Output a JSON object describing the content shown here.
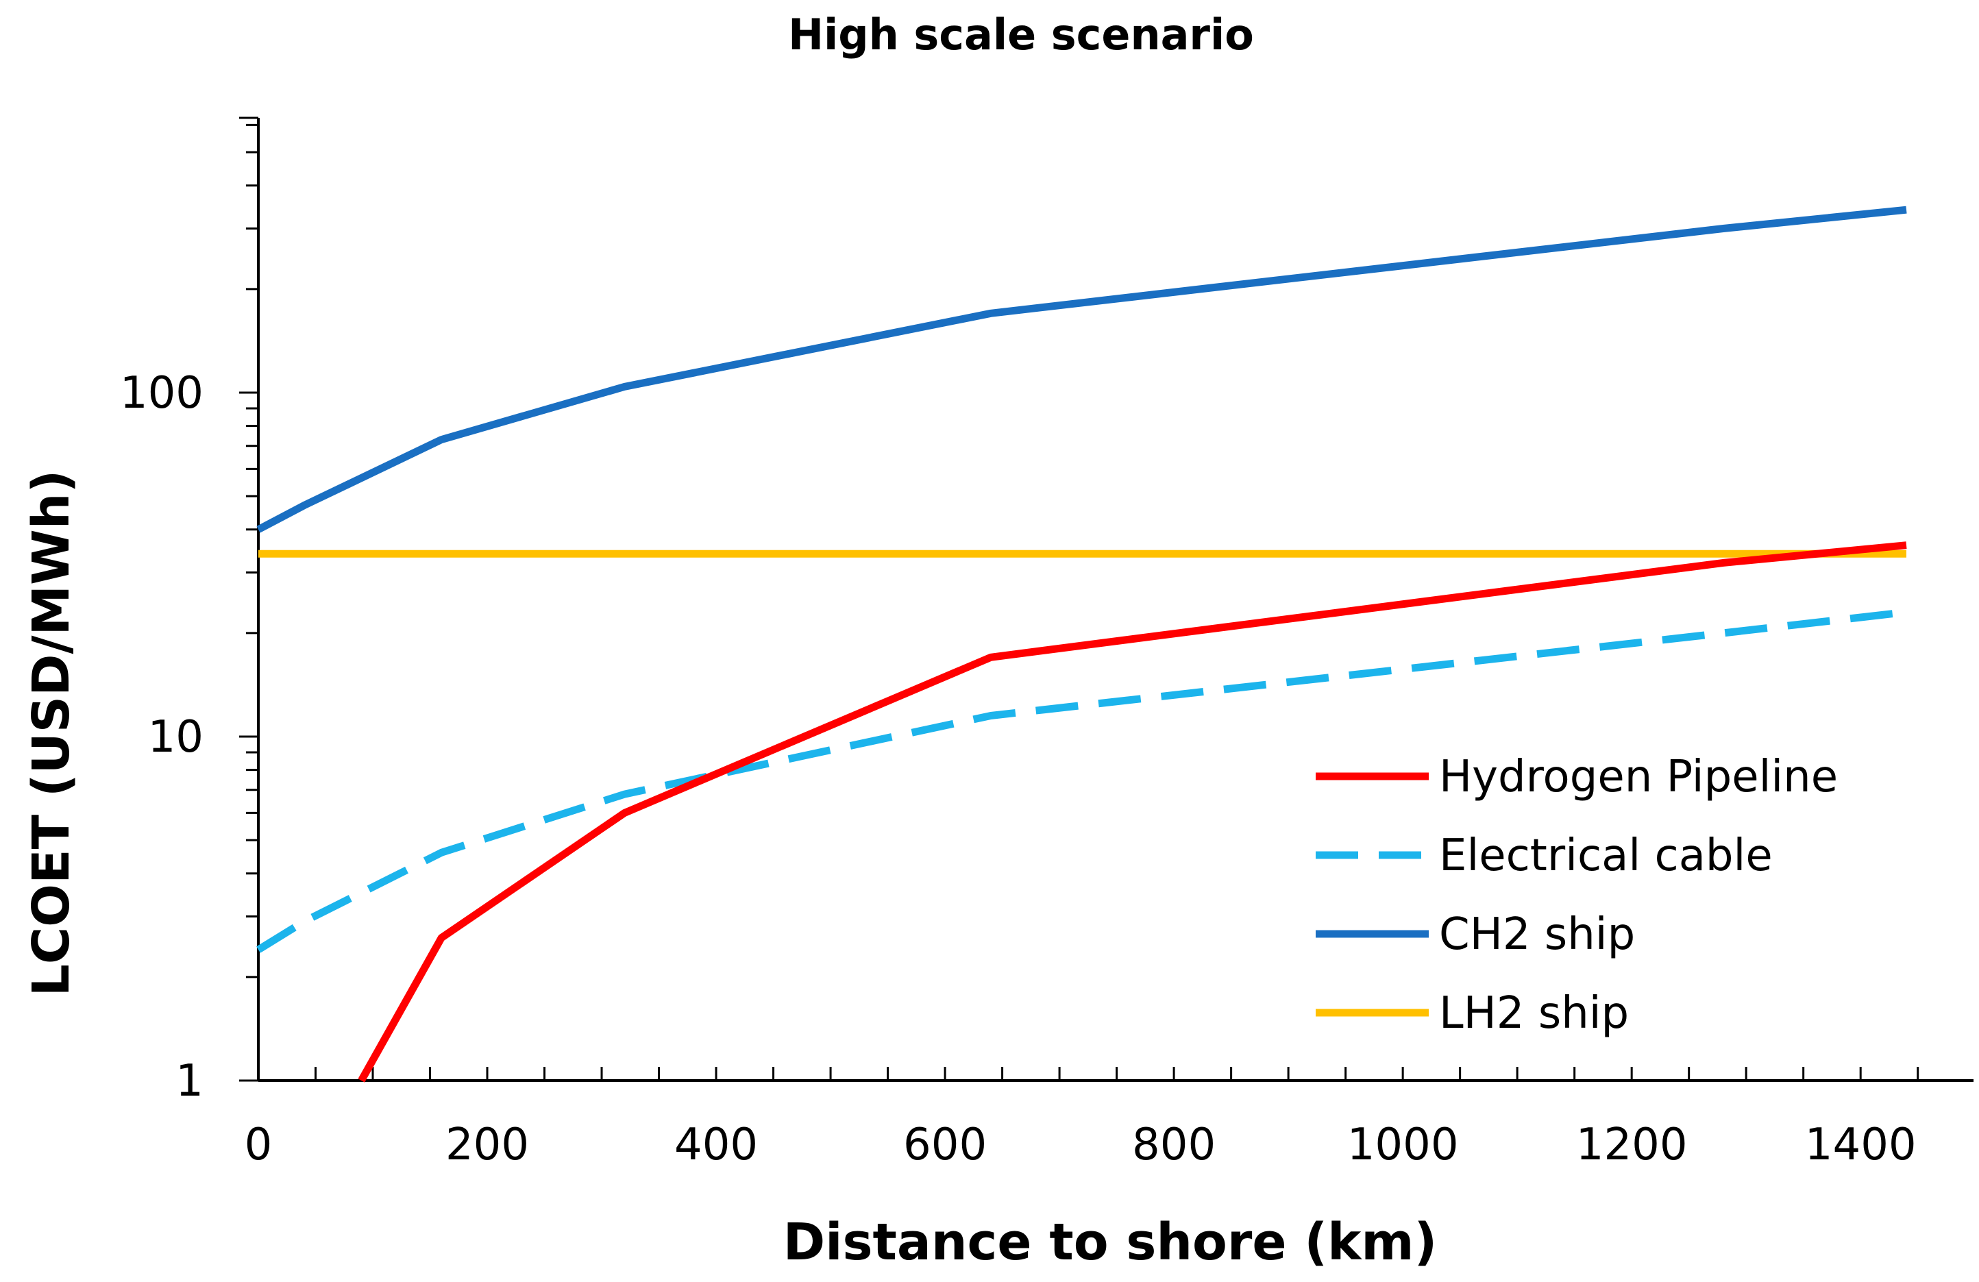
{
  "chart_data": {
    "type": "line",
    "title": "High scale scenario",
    "xlabel": "Distance to shore (km)",
    "ylabel": "LCOET (USD/MWh)",
    "xlim": [
      0,
      1500
    ],
    "ylim": [
      1,
      1000
    ],
    "y_scale": "log",
    "x_ticks": [
      0,
      200,
      400,
      600,
      800,
      1000,
      1200,
      1400
    ],
    "y_ticks": [
      1,
      10,
      100
    ],
    "grid": false,
    "legend_position": "bottom-right",
    "series": [
      {
        "name": "Hydrogen Pipeline",
        "color": "#ff0000",
        "dash": "solid",
        "x": [
          90,
          160,
          320,
          640,
          1280,
          1440
        ],
        "y": [
          1,
          2.6,
          6,
          17,
          32,
          36
        ]
      },
      {
        "name": "Electrical cable",
        "color": "#1cb4ec",
        "dash": "dashed",
        "x": [
          0,
          40,
          160,
          320,
          640,
          1280,
          1440
        ],
        "y": [
          2.4,
          2.9,
          4.6,
          6.8,
          11.5,
          20,
          23
        ]
      },
      {
        "name": "CH2 ship",
        "color": "#1a6fc2",
        "dash": "solid",
        "x": [
          0,
          40,
          160,
          320,
          640,
          1280,
          1440
        ],
        "y": [
          40,
          47,
          73,
          104,
          170,
          300,
          340
        ]
      },
      {
        "name": "LH2 ship",
        "color": "#ffc000",
        "dash": "solid",
        "x": [
          0,
          1440
        ],
        "y": [
          34,
          34
        ]
      }
    ]
  }
}
